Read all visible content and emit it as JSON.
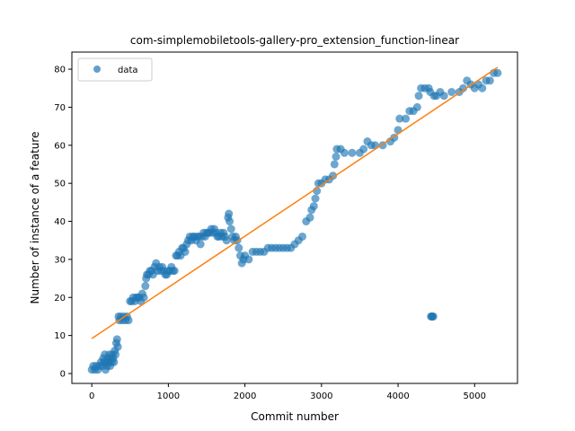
{
  "chart_data": {
    "type": "scatter",
    "title": "com-simplemobiletools-gallery-pro_extension_function-linear",
    "xlabel": "Commit number",
    "ylabel": "Number of instance of a feature",
    "xlim": [
      -260,
      5560
    ],
    "ylim": [
      -2.6,
      84.5
    ],
    "xticks": [
      0,
      1000,
      2000,
      3000,
      4000,
      5000
    ],
    "yticks": [
      0,
      10,
      20,
      30,
      40,
      50,
      60,
      70,
      80
    ],
    "grid": false,
    "legend": {
      "position": "top-left",
      "entries": [
        "data"
      ]
    },
    "colors": {
      "data": "#1f77b4",
      "fit": "#ff7f0e"
    },
    "fit_line": {
      "x": [
        0,
        5300
      ],
      "y": [
        9.2,
        80.5
      ]
    },
    "series": [
      {
        "name": "data",
        "points": [
          [
            0,
            1
          ],
          [
            20,
            2
          ],
          [
            40,
            1
          ],
          [
            60,
            2
          ],
          [
            80,
            1
          ],
          [
            100,
            2
          ],
          [
            120,
            3
          ],
          [
            140,
            2
          ],
          [
            150,
            4
          ],
          [
            160,
            3
          ],
          [
            170,
            5
          ],
          [
            180,
            1
          ],
          [
            190,
            3
          ],
          [
            200,
            2
          ],
          [
            210,
            4
          ],
          [
            220,
            3
          ],
          [
            230,
            5
          ],
          [
            240,
            2
          ],
          [
            250,
            4
          ],
          [
            260,
            3
          ],
          [
            270,
            5
          ],
          [
            280,
            4
          ],
          [
            290,
            3
          ],
          [
            300,
            6
          ],
          [
            310,
            5
          ],
          [
            320,
            8
          ],
          [
            330,
            9
          ],
          [
            340,
            7
          ],
          [
            350,
            15
          ],
          [
            360,
            14
          ],
          [
            380,
            15
          ],
          [
            400,
            14
          ],
          [
            420,
            15
          ],
          [
            440,
            14
          ],
          [
            460,
            15
          ],
          [
            480,
            14
          ],
          [
            500,
            19
          ],
          [
            520,
            19
          ],
          [
            540,
            20
          ],
          [
            560,
            19
          ],
          [
            580,
            20
          ],
          [
            600,
            20
          ],
          [
            620,
            20
          ],
          [
            640,
            19
          ],
          [
            660,
            21
          ],
          [
            680,
            20
          ],
          [
            700,
            23
          ],
          [
            710,
            25
          ],
          [
            720,
            26
          ],
          [
            740,
            26
          ],
          [
            760,
            27
          ],
          [
            780,
            27
          ],
          [
            800,
            26
          ],
          [
            820,
            28
          ],
          [
            840,
            29
          ],
          [
            860,
            27
          ],
          [
            880,
            28
          ],
          [
            900,
            27
          ],
          [
            920,
            28
          ],
          [
            940,
            27
          ],
          [
            960,
            26
          ],
          [
            980,
            26
          ],
          [
            1000,
            27
          ],
          [
            1020,
            27
          ],
          [
            1040,
            28
          ],
          [
            1060,
            27
          ],
          [
            1080,
            27
          ],
          [
            1100,
            31
          ],
          [
            1120,
            31
          ],
          [
            1140,
            32
          ],
          [
            1160,
            31
          ],
          [
            1180,
            33
          ],
          [
            1200,
            33
          ],
          [
            1220,
            32
          ],
          [
            1240,
            34
          ],
          [
            1260,
            35
          ],
          [
            1280,
            36
          ],
          [
            1300,
            35
          ],
          [
            1320,
            36
          ],
          [
            1340,
            36
          ],
          [
            1360,
            35
          ],
          [
            1380,
            36
          ],
          [
            1400,
            36
          ],
          [
            1420,
            34
          ],
          [
            1440,
            36
          ],
          [
            1460,
            37
          ],
          [
            1480,
            36
          ],
          [
            1500,
            37
          ],
          [
            1520,
            37
          ],
          [
            1540,
            37
          ],
          [
            1560,
            38
          ],
          [
            1580,
            37
          ],
          [
            1600,
            38
          ],
          [
            1620,
            37
          ],
          [
            1640,
            36
          ],
          [
            1660,
            36
          ],
          [
            1680,
            37
          ],
          [
            1700,
            36
          ],
          [
            1720,
            37
          ],
          [
            1740,
            36
          ],
          [
            1760,
            35
          ],
          [
            1780,
            41
          ],
          [
            1790,
            42
          ],
          [
            1800,
            40
          ],
          [
            1820,
            38
          ],
          [
            1840,
            36
          ],
          [
            1860,
            35
          ],
          [
            1880,
            36
          ],
          [
            1900,
            35
          ],
          [
            1920,
            33
          ],
          [
            1940,
            31
          ],
          [
            1960,
            29
          ],
          [
            1980,
            30
          ],
          [
            2000,
            31
          ],
          [
            2050,
            30
          ],
          [
            2100,
            32
          ],
          [
            2150,
            32
          ],
          [
            2200,
            32
          ],
          [
            2250,
            32
          ],
          [
            2300,
            33
          ],
          [
            2350,
            33
          ],
          [
            2400,
            33
          ],
          [
            2450,
            33
          ],
          [
            2500,
            33
          ],
          [
            2550,
            33
          ],
          [
            2600,
            33
          ],
          [
            2650,
            34
          ],
          [
            2700,
            35
          ],
          [
            2750,
            36
          ],
          [
            2800,
            40
          ],
          [
            2850,
            41
          ],
          [
            2870,
            43
          ],
          [
            2900,
            44
          ],
          [
            2920,
            46
          ],
          [
            2940,
            48
          ],
          [
            2960,
            50
          ],
          [
            3000,
            50
          ],
          [
            3050,
            51
          ],
          [
            3100,
            51
          ],
          [
            3150,
            52
          ],
          [
            3170,
            55
          ],
          [
            3190,
            57
          ],
          [
            3200,
            59
          ],
          [
            3250,
            59
          ],
          [
            3300,
            58
          ],
          [
            3400,
            58
          ],
          [
            3500,
            58
          ],
          [
            3550,
            59
          ],
          [
            3600,
            61
          ],
          [
            3650,
            60
          ],
          [
            3700,
            60
          ],
          [
            3800,
            60
          ],
          [
            3900,
            61
          ],
          [
            3950,
            62
          ],
          [
            4000,
            64
          ],
          [
            4020,
            67
          ],
          [
            4100,
            67
          ],
          [
            4150,
            69
          ],
          [
            4200,
            69
          ],
          [
            4250,
            70
          ],
          [
            4270,
            73
          ],
          [
            4300,
            75
          ],
          [
            4350,
            75
          ],
          [
            4400,
            75
          ],
          [
            4420,
            74
          ],
          [
            4430,
            15
          ],
          [
            4440,
            15
          ],
          [
            4450,
            15
          ],
          [
            4460,
            15
          ],
          [
            4470,
            73
          ],
          [
            4500,
            73
          ],
          [
            4550,
            74
          ],
          [
            4600,
            73
          ],
          [
            4700,
            74
          ],
          [
            4800,
            74
          ],
          [
            4850,
            75
          ],
          [
            4900,
            77
          ],
          [
            4950,
            76
          ],
          [
            5000,
            75
          ],
          [
            5050,
            76
          ],
          [
            5100,
            75
          ],
          [
            5150,
            77
          ],
          [
            5200,
            77
          ],
          [
            5250,
            79
          ],
          [
            5300,
            79
          ]
        ]
      }
    ]
  }
}
